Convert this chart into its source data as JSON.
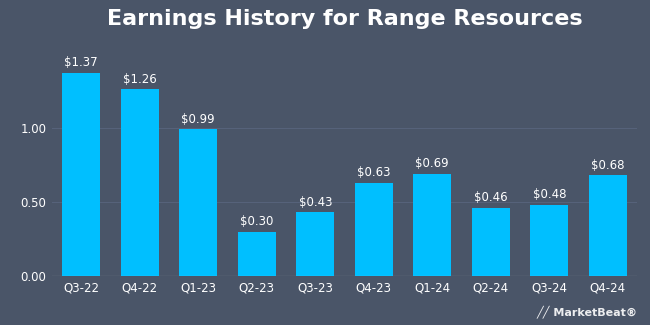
{
  "title": "Earnings History for Range Resources",
  "categories": [
    "Q3-22",
    "Q4-22",
    "Q1-23",
    "Q2-23",
    "Q3-23",
    "Q4-23",
    "Q1-24",
    "Q2-24",
    "Q3-24",
    "Q4-24"
  ],
  "values": [
    1.37,
    1.26,
    0.99,
    0.3,
    0.43,
    0.63,
    0.69,
    0.46,
    0.48,
    0.68
  ],
  "labels": [
    "$1.37",
    "$1.26",
    "$0.99",
    "$0.30",
    "$0.43",
    "$0.63",
    "$0.69",
    "$0.46",
    "$0.48",
    "$0.68"
  ],
  "bar_color": "#00bfff",
  "background_color": "#4a5568",
  "plot_bg_color": "#4a5568",
  "text_color": "#ffffff",
  "grid_color": "#5a6680",
  "title_fontsize": 16,
  "label_fontsize": 8.5,
  "tick_fontsize": 8.5,
  "ylim": [
    0,
    1.6
  ],
  "yticks": [
    0.0,
    0.5,
    1.0
  ]
}
